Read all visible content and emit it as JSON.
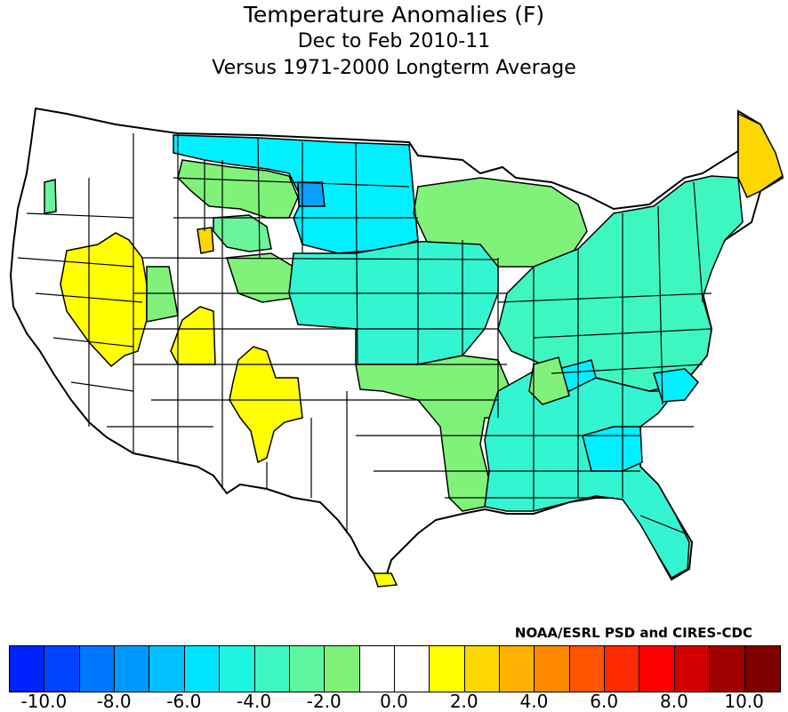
{
  "title": "Temperature Anomalies (F)",
  "subtitle": "Dec to Feb 2010-11",
  "subtitle2": "Versus 1971-2000 Longterm Average",
  "credit": "NOAA/ESRL PSD and CIRES-CDC",
  "colors": {
    "cyan": "#00f0ff",
    "blue_deep": "#0aa0ff",
    "teal": "#33f5d2",
    "aquamarine": "#4dfab8",
    "light_green": "#6af59a",
    "pale_green": "#80f27a",
    "white": "#ffffff",
    "yellow": "#ffff00",
    "gold": "#ffd700"
  },
  "legend": {
    "colors": [
      "#0022ff",
      "#0044ff",
      "#0077ff",
      "#0099ff",
      "#00c0ff",
      "#00e5ff",
      "#1ef5e0",
      "#3ef7c0",
      "#5ef7a0",
      "#80f27a",
      "#ffffff",
      "#ffffff",
      "#ffff00",
      "#ffd700",
      "#ffb000",
      "#ff8800",
      "#ff5500",
      "#ff2a00",
      "#ff0000",
      "#d20000",
      "#a00000",
      "#800000"
    ],
    "tick_labels": [
      "-10.0",
      "-8.0",
      "-6.0",
      "-4.0",
      "-2.0",
      "0.0",
      "2.0",
      "4.0",
      "6.0",
      "8.0",
      "10.0"
    ]
  }
}
